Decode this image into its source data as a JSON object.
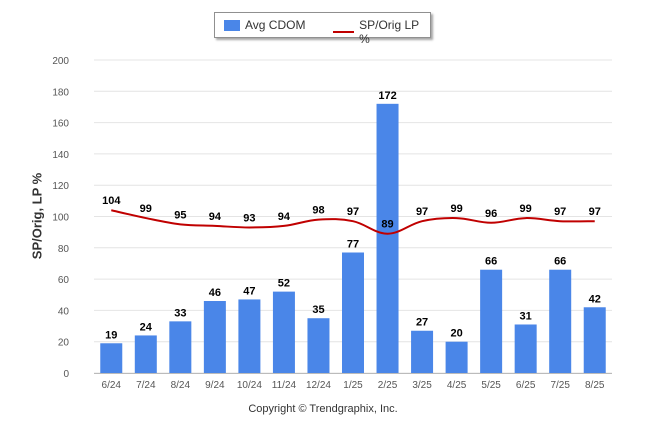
{
  "chart_data": {
    "type": "bar",
    "ylabel": "SP/Orig, LP %",
    "ylim": [
      0,
      200
    ],
    "yticks": [
      0,
      20,
      40,
      60,
      80,
      100,
      120,
      140,
      160,
      180,
      200
    ],
    "grid": true,
    "legend_position": "top-center",
    "categories": [
      "6/24",
      "7/24",
      "8/24",
      "9/24",
      "10/24",
      "11/24",
      "12/24",
      "1/25",
      "2/25",
      "3/25",
      "4/25",
      "5/25",
      "6/25",
      "7/25",
      "8/25"
    ],
    "series": [
      {
        "name": "Avg CDOM",
        "type": "bar",
        "color": "#4a86e8",
        "values": [
          19,
          24,
          33,
          46,
          47,
          52,
          35,
          77,
          172,
          27,
          20,
          66,
          31,
          66,
          42
        ]
      },
      {
        "name": "SP/Orig LP %",
        "type": "line",
        "color": "#c00000",
        "values": [
          104,
          99,
          95,
          94,
          93,
          94,
          98,
          97,
          89,
          97,
          99,
          96,
          99,
          97,
          97
        ]
      }
    ]
  },
  "footer": {
    "copyright": "Copyright © Trendgraphix, Inc."
  }
}
